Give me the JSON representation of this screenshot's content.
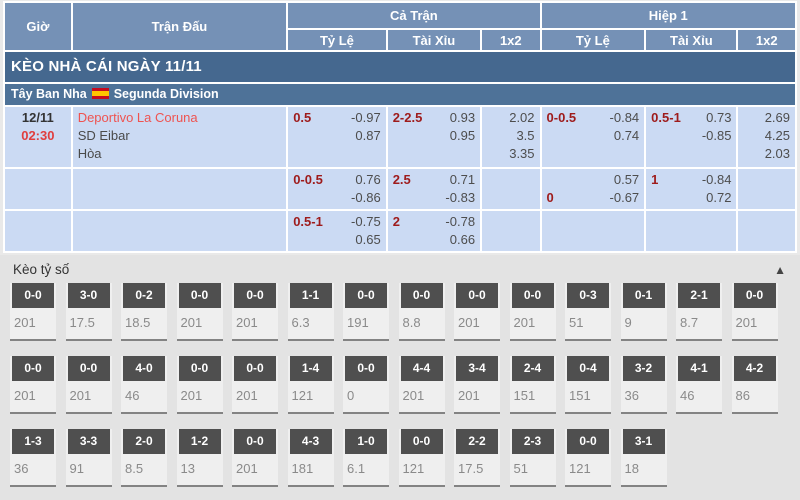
{
  "colors": {
    "header_blue": "#7591b6",
    "banner_blue": "#45688f",
    "league_blue": "#4e7298",
    "row_light_blue": "#cbdaf3",
    "label_red": "#9e1b1b",
    "team_red": "#ef5350",
    "score_header_gray": "#4f4f4f"
  },
  "header": {
    "time": "Giờ",
    "match": "Trận Đấu",
    "full_time": "Cả Trận",
    "first_half": "Hiệp 1",
    "sub_columns": [
      "Tỷ Lệ",
      "Tài Xỉu",
      "1x2"
    ]
  },
  "banner": {
    "title": "KÈO NHÀ CÁI NGÀY 11/11"
  },
  "league": {
    "country": "Tây Ban Nha",
    "name": "Segunda Division",
    "flag": "spain-flag"
  },
  "match": {
    "date": "12/11",
    "time": "02:30",
    "home_team": "Deportivo La Coruna",
    "away_team": "SD Eibar",
    "draw_label": "Hòa"
  },
  "odds_rows": [
    {
      "ft_handicap": [
        [
          "0.5",
          "-0.97"
        ],
        [
          "",
          "0.87"
        ]
      ],
      "ft_over_under": [
        [
          "2-2.5",
          "0.93"
        ],
        [
          "",
          "0.95"
        ]
      ],
      "ft_1x2": [
        "2.02",
        "3.5",
        "3.35"
      ],
      "h1_handicap": [
        [
          "0-0.5",
          "-0.84"
        ],
        [
          "",
          "0.74"
        ]
      ],
      "h1_over_under": [
        [
          "0.5-1",
          "0.73"
        ],
        [
          "",
          "-0.85"
        ]
      ],
      "h1_1x2": [
        "2.69",
        "4.25",
        "2.03"
      ]
    },
    {
      "ft_handicap": [
        [
          "0-0.5",
          "0.76"
        ],
        [
          "",
          "-0.86"
        ]
      ],
      "ft_over_under": [
        [
          "2.5",
          "0.71"
        ],
        [
          "",
          "-0.83"
        ]
      ],
      "ft_1x2": [],
      "h1_handicap": [
        [
          "",
          "0.57"
        ],
        [
          "0",
          "-0.67"
        ]
      ],
      "h1_over_under": [
        [
          "1",
          "-0.84"
        ],
        [
          "",
          "0.72"
        ]
      ],
      "h1_1x2": []
    },
    {
      "ft_handicap": [
        [
          "0.5-1",
          "-0.75"
        ],
        [
          "",
          "0.65"
        ]
      ],
      "ft_over_under": [
        [
          "2",
          "-0.78"
        ],
        [
          "",
          "0.66"
        ]
      ],
      "ft_1x2": [],
      "h1_handicap": [],
      "h1_over_under": [],
      "h1_1x2": []
    }
  ],
  "score_section": {
    "title": "Kèo tỷ số",
    "collapse_icon": "▲",
    "rows": [
      [
        {
          "score": "0-0",
          "odds": "201"
        },
        {
          "score": "3-0",
          "odds": "17.5"
        },
        {
          "score": "0-2",
          "odds": "18.5"
        },
        {
          "score": "0-0",
          "odds": "201"
        },
        {
          "score": "0-0",
          "odds": "201"
        },
        {
          "score": "1-1",
          "odds": "6.3"
        },
        {
          "score": "0-0",
          "odds": "191"
        },
        {
          "score": "0-0",
          "odds": "8.8"
        },
        {
          "score": "0-0",
          "odds": "201"
        },
        {
          "score": "0-0",
          "odds": "201"
        },
        {
          "score": "0-3",
          "odds": "51"
        },
        {
          "score": "0-1",
          "odds": "9"
        },
        {
          "score": "2-1",
          "odds": "8.7"
        },
        {
          "score": "0-0",
          "odds": "201"
        }
      ],
      [
        {
          "score": "0-0",
          "odds": "201"
        },
        {
          "score": "0-0",
          "odds": "201"
        },
        {
          "score": "4-0",
          "odds": "46"
        },
        {
          "score": "0-0",
          "odds": "201"
        },
        {
          "score": "0-0",
          "odds": "201"
        },
        {
          "score": "1-4",
          "odds": "121"
        },
        {
          "score": "0-0",
          "odds": "0"
        },
        {
          "score": "4-4",
          "odds": "201"
        },
        {
          "score": "3-4",
          "odds": "201"
        },
        {
          "score": "2-4",
          "odds": "151"
        },
        {
          "score": "0-4",
          "odds": "151"
        },
        {
          "score": "3-2",
          "odds": "36"
        },
        {
          "score": "4-1",
          "odds": "46"
        },
        {
          "score": "4-2",
          "odds": "86"
        }
      ],
      [
        {
          "score": "1-3",
          "odds": "36"
        },
        {
          "score": "3-3",
          "odds": "91"
        },
        {
          "score": "2-0",
          "odds": "8.5"
        },
        {
          "score": "1-2",
          "odds": "13"
        },
        {
          "score": "0-0",
          "odds": "201"
        },
        {
          "score": "4-3",
          "odds": "181"
        },
        {
          "score": "1-0",
          "odds": "6.1"
        },
        {
          "score": "0-0",
          "odds": "121"
        },
        {
          "score": "2-2",
          "odds": "17.5"
        },
        {
          "score": "2-3",
          "odds": "51"
        },
        {
          "score": "0-0",
          "odds": "121"
        },
        {
          "score": "3-1",
          "odds": "18"
        }
      ]
    ]
  }
}
